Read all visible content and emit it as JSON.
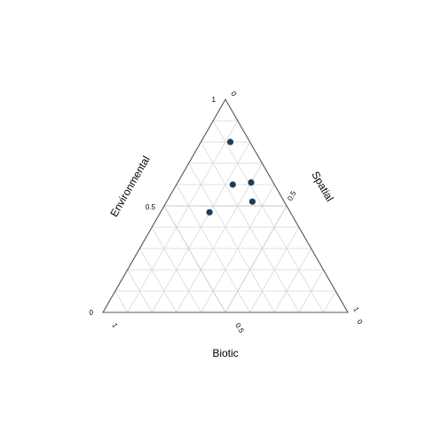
{
  "chart_data": {
    "type": "scatter",
    "subtype": "ternary",
    "axes": {
      "environmental": {
        "label": "Environmental",
        "range": [
          0,
          1
        ],
        "ticks": [
          "1",
          "0.5",
          "0"
        ]
      },
      "spatial": {
        "label": "Spatial",
        "range": [
          0,
          1
        ],
        "ticks": [
          "0",
          "0.5",
          "1"
        ]
      },
      "biotic": {
        "label": "Biotic",
        "range": [
          0,
          1
        ],
        "ticks": [
          "1",
          "0.5",
          "0"
        ]
      }
    },
    "grid_step": 0.1,
    "grid": true,
    "point_color": "#1f3d5a",
    "points": [
      {
        "environmental": 0.8,
        "spatial": 0.12,
        "biotic": 0.08
      },
      {
        "environmental": 0.61,
        "spatial": 0.3,
        "biotic": 0.09
      },
      {
        "environmental": 0.6,
        "spatial": 0.23,
        "biotic": 0.17
      },
      {
        "environmental": 0.52,
        "spatial": 0.35,
        "biotic": 0.13
      },
      {
        "environmental": 0.47,
        "spatial": 0.2,
        "biotic": 0.33
      }
    ]
  }
}
